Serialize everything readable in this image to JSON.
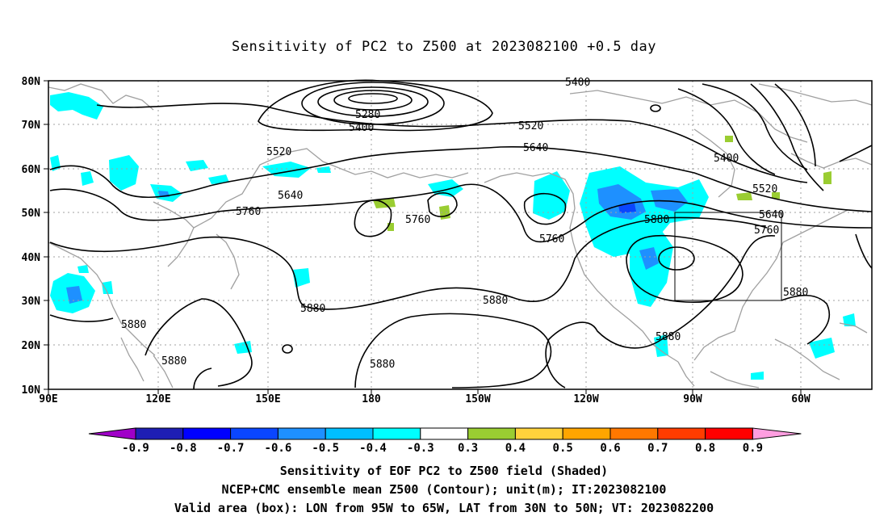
{
  "title": "Sensitivity of PC2 to Z500 at 2023082100 +0.5 day",
  "map": {
    "lat_labels": [
      "80N",
      "70N",
      "60N",
      "50N",
      "40N",
      "30N",
      "20N",
      "10N"
    ],
    "lon_labels": [
      "90E",
      "120E",
      "150E",
      "180",
      "150W",
      "120W",
      "90W",
      "60W"
    ],
    "contour_labels": [
      "5400",
      "5280",
      "5400",
      "5520",
      "5520",
      "5640",
      "5640",
      "5760",
      "5760",
      "5760",
      "5880",
      "5880",
      "5880",
      "5880",
      "5880",
      "5880",
      "5400",
      "5520",
      "5640",
      "5760",
      "5880"
    ],
    "valid_box": {
      "lon_from": "95W",
      "lon_to": "65W",
      "lat_from": "30N",
      "lat_to": "50N"
    },
    "colors": {
      "coast": "#a0a0a0",
      "contour": "#000000",
      "grid": "#a0a0a0"
    }
  },
  "colorbar": {
    "labels": [
      "-0.9",
      "-0.8",
      "-0.7",
      "-0.6",
      "-0.5",
      "-0.4",
      "-0.3",
      "0.3",
      "0.4",
      "0.5",
      "0.6",
      "0.7",
      "0.8",
      "0.9"
    ],
    "colors": [
      "#a000c8",
      "#1e1eb4",
      "#0000ff",
      "#0a46ff",
      "#1e90ff",
      "#00bfff",
      "#00ffff",
      "#ffffff",
      "#9acd32",
      "#ffd23c",
      "#ffa500",
      "#ff7800",
      "#ff3c00",
      "#ff0000",
      "#ff9ee0"
    ]
  },
  "footer": {
    "line1": "Sensitivity of EOF PC2 to Z500 field (Shaded)",
    "line2": "NCEP+CMC ensemble mean Z500 (Contour); unit(m); IT:2023082100",
    "line3": "Valid area (box): LON from 95W to 65W, LAT from 30N to 50N; VT: 2023082200"
  }
}
